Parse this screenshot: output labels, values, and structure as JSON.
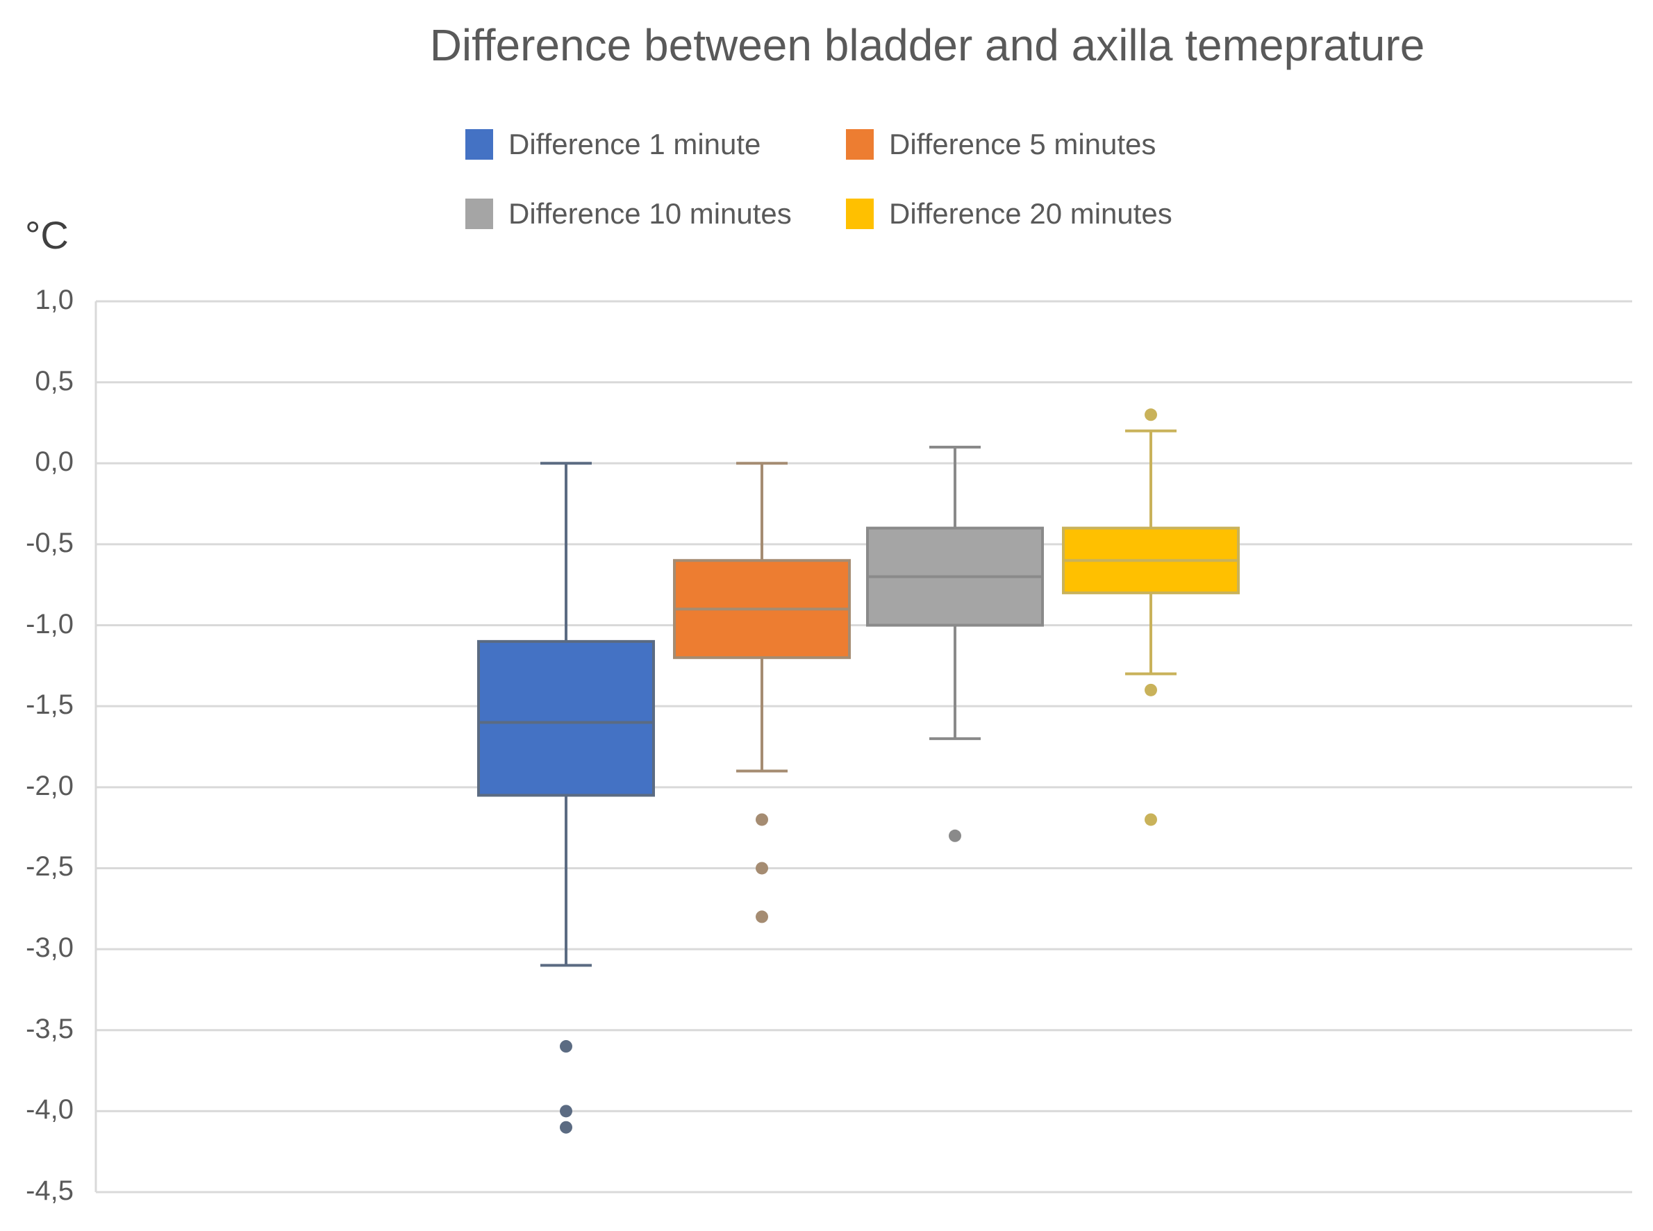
{
  "chart_data": {
    "type": "boxplot",
    "title": "Difference between bladder and axilla temeprature",
    "ylabel": "°C",
    "ylim": [
      -4.5,
      1.0
    ],
    "yticks": [
      1.0,
      0.5,
      0.0,
      -0.5,
      -1.0,
      -1.5,
      -2.0,
      -2.5,
      -3.0,
      -3.5,
      -4.0,
      -4.5
    ],
    "ytick_labels": [
      "1,0",
      "0,5",
      "0,0",
      "-0,5",
      "-1,0",
      "-1,5",
      "-2,0",
      "-2,5",
      "-3,0",
      "-3,5",
      "-4,0",
      "-4,5"
    ],
    "grid": true,
    "legend_position": "top-center",
    "series": [
      {
        "name": "Difference 1 minute",
        "color": "#4472C4",
        "whisker_color": "#5b6b82",
        "min": -3.1,
        "q1": -2.05,
        "median": -1.6,
        "q3": -1.1,
        "max": 0.0,
        "outliers": [
          -3.6,
          -4.0,
          -4.1
        ]
      },
      {
        "name": "Difference 5 minutes",
        "color": "#ED7D31",
        "whisker_color": "#a58c72",
        "min": -1.9,
        "q1": -1.2,
        "median": -0.9,
        "q3": -0.6,
        "max": 0.0,
        "outliers": [
          -2.2,
          -2.5,
          -2.8
        ]
      },
      {
        "name": "Difference 10 minutes",
        "color": "#A5A5A5",
        "whisker_color": "#8a8a8a",
        "min": -1.7,
        "q1": -1.0,
        "median": -0.7,
        "q3": -0.4,
        "max": 0.1,
        "outliers": [
          -2.3
        ]
      },
      {
        "name": "Difference 20 minutes",
        "color": "#FFC000",
        "whisker_color": "#c9b25a",
        "min": -1.3,
        "q1": -0.8,
        "median": -0.6,
        "q3": -0.4,
        "max": 0.2,
        "outliers": [
          0.3,
          -1.4,
          -2.2
        ]
      }
    ]
  }
}
